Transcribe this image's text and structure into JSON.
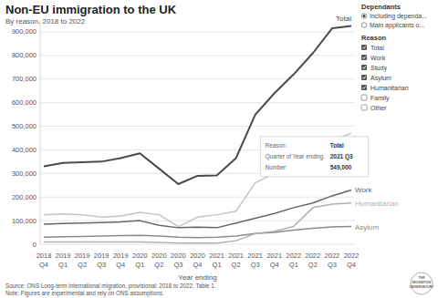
{
  "chart_data": {
    "type": "line",
    "title": "Non-EU immigration to the UK",
    "subtitle": "By reason, 2018 to 2022",
    "x_label": "Year ending",
    "categories": [
      "2018 Q4",
      "2019 Q1",
      "2019 Q2",
      "2019 Q3",
      "2019 Q4",
      "2020 Q1",
      "2020 Q2",
      "2020 Q3",
      "2020 Q4",
      "2021 Q1",
      "2021 Q2",
      "2021 Q3",
      "2021 Q4",
      "2022 Q1",
      "2022 Q2",
      "2022 Q3",
      "2022 Q4"
    ],
    "series": [
      {
        "name": "Total",
        "label": "Total",
        "color": "#4a4a4a",
        "values": [
          330000,
          345000,
          348000,
          350000,
          365000,
          385000,
          320000,
          255000,
          290000,
          292000,
          365000,
          549000,
          640000,
          720000,
          810000,
          915000,
          925000
        ]
      },
      {
        "name": "Work",
        "label": "Work",
        "color": "#666666",
        "values": [
          85000,
          88000,
          90000,
          92000,
          95000,
          100000,
          80000,
          70000,
          72000,
          70000,
          90000,
          110000,
          130000,
          155000,
          175000,
          205000,
          230000
        ]
      },
      {
        "name": "Study",
        "color": "#c4c4c4",
        "values": [
          125000,
          128000,
          125000,
          115000,
          120000,
          135000,
          125000,
          75000,
          115000,
          125000,
          140000,
          260000,
          300000,
          330000,
          380000,
          440000,
          470000
        ]
      },
      {
        "name": "Asylum",
        "label": "Asylum",
        "color": "#8c8c8c",
        "values": [
          30000,
          32000,
          33000,
          35000,
          37000,
          38000,
          35000,
          30000,
          28000,
          30000,
          35000,
          45000,
          50000,
          60000,
          68000,
          73000,
          75000
        ]
      },
      {
        "name": "Humanitarian",
        "label": "Humanitarian",
        "color": "#b0b0b0",
        "values": [
          10000,
          10000,
          10000,
          10000,
          10000,
          10000,
          8000,
          5000,
          5000,
          5000,
          15000,
          45000,
          55000,
          75000,
          155000,
          170000,
          175000
        ]
      }
    ],
    "ylim": [
      0,
      950000
    ],
    "yticks": [
      0,
      {
        "value": 100000,
        "label": "100,000"
      },
      {
        "value": 200000,
        "label": "200,000"
      },
      {
        "value": 300000,
        "label": "300,000"
      },
      {
        "value": 400000,
        "label": "400,000"
      },
      {
        "value": 500000,
        "label": "500,000"
      },
      {
        "value": 600000,
        "label": "600,000"
      },
      {
        "value": 700000,
        "label": "700,000"
      },
      {
        "value": 800000,
        "label": "800,000"
      },
      {
        "value": 900000,
        "label": "900,000"
      }
    ],
    "grid": true,
    "legend": "top-right",
    "legend_title": "Reason",
    "controls": {
      "dependants": {
        "title": "Dependants",
        "options": [
          "Including dependa...",
          "Main applicants o..."
        ],
        "selected": 0
      },
      "reason_unchecked": [
        "Family",
        "Other"
      ]
    },
    "tooltip": {
      "rows": [
        {
          "label": "Reason:",
          "value": "Total"
        },
        {
          "label": "Quarter of Year ending:",
          "value": "2021 Q3"
        },
        {
          "label": "Number:",
          "value": "549,000"
        }
      ]
    },
    "source": "Source: ONS Long-term international migration, provisional: 2018 to 2022, Table 1.",
    "note": "Note: Figures are experimental and rely on ONS assumptions.",
    "logo": "THE MIGRATION OBSERVATORY"
  }
}
